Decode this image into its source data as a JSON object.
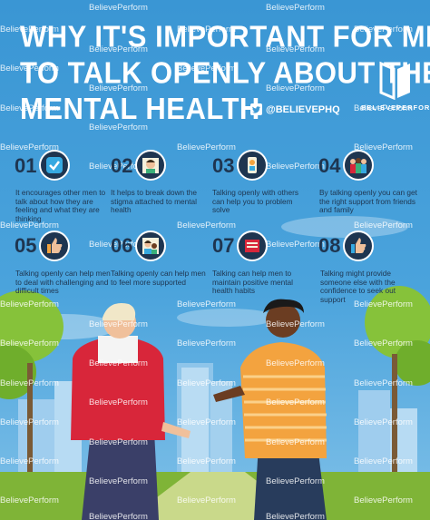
{
  "title": {
    "line1": "WHY IT'S IMPORTANT FOR MEN",
    "line2": "TO TALK OPENLY ABOUT THEIR",
    "line3": "MENTAL HEALTH"
  },
  "social": {
    "handle": "@BELIEVEPHQ",
    "icon": "twitter-icon"
  },
  "brand": {
    "name": "BELIEVEPERFORM",
    "watermark": "BelievePerform"
  },
  "colors": {
    "sky": "#3f9bd6",
    "navy": "#1e3550",
    "vest": "#d8263a",
    "shirt": "#f3a33f",
    "grass": "#7fb437"
  },
  "items": [
    {
      "number": "01",
      "icon": "checkmark-icon",
      "text": "It encourages other men to talk about how they are feeling and what they are thinking"
    },
    {
      "number": "02",
      "icon": "man-face-icon",
      "text": "It helps to break down the stigma attached to mental health"
    },
    {
      "number": "03",
      "icon": "phone-chat-icon",
      "text": "Talking openly with others can help you to problem solve"
    },
    {
      "number": "04",
      "icon": "group-people-icon",
      "text": "By talking openly you can get the right support from friends and family"
    },
    {
      "number": "05",
      "icon": "thumbs-up-icon",
      "text": "Talking openly can help men to deal with challenging and difficult times"
    },
    {
      "number": "06",
      "icon": "couple-icon",
      "text": "Talking openly can help men to feel more supported"
    },
    {
      "number": "07",
      "icon": "notebook-icon",
      "text": "Talking can help men to maintain positive mental health habits"
    },
    {
      "number": "08",
      "icon": "thumbs-up-hand-icon",
      "text": "Talking might provide someone else with the confidence to seek out support"
    }
  ]
}
